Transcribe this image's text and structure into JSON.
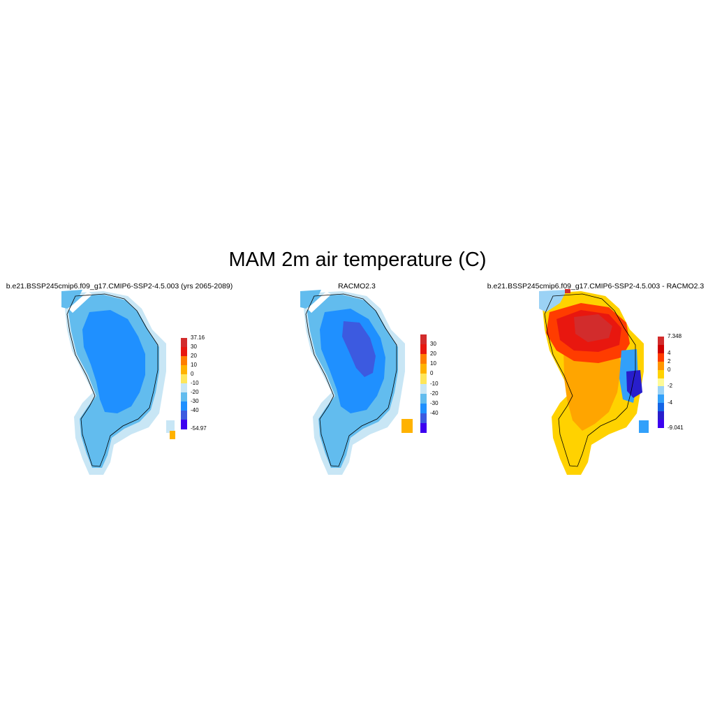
{
  "figure": {
    "title": "MAM 2m air temperature (C)"
  },
  "panels": [
    {
      "title": "b.e21.BSSP245cmip6.f09_g17.CMIP6-SSP2-4.5.003 (yrs 2065-2089)",
      "colorbar": {
        "labels": [
          "37.16",
          "30",
          "20",
          "10",
          "0",
          "-10",
          "-20",
          "-30",
          "-40",
          "-54.97"
        ],
        "colors": [
          "#d22c2c",
          "#e8170f",
          "#ff7d00",
          "#ffb200",
          "#fee65a",
          "#c8e6f5",
          "#62bcee",
          "#1f90ff",
          "#3c5ae0",
          "#3c00f0"
        ]
      }
    },
    {
      "title": "RACMO2.3",
      "colorbar": {
        "labels": [
          "30",
          "20",
          "10",
          "0",
          "-10",
          "-20",
          "-30",
          "-40"
        ],
        "colors": [
          "#d22c2c",
          "#e8170f",
          "#ff7d00",
          "#ffb200",
          "#fee65a",
          "#c8e6f5",
          "#62bcee",
          "#1f90ff",
          "#3c5ae0",
          "#3c00f0"
        ]
      }
    },
    {
      "title": "b.e21.BSSP245cmip6.f09_g17.CMIP6-SSP2-4.5.003 - RACMO2.3",
      "colorbar": {
        "labels": [
          "7.348",
          "4",
          "2",
          "0",
          "-2",
          "-4",
          "-9.041"
        ],
        "colors": [
          "#d22c2c",
          "#cf0000",
          "#ff3c00",
          "#ff9600",
          "#ffd200",
          "#fefa96",
          "#9bd2f5",
          "#32a0fa",
          "#1464e6",
          "#281ecc",
          "#3c00f0"
        ]
      }
    }
  ]
}
